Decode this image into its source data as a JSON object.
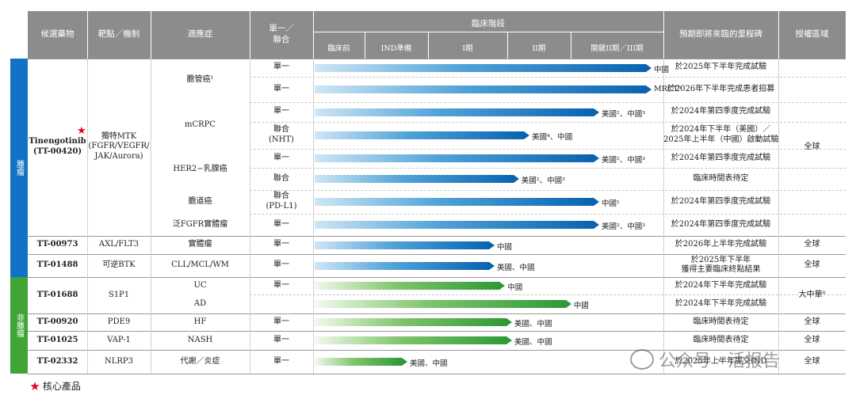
{
  "header": {
    "candidate": "候選藥物",
    "target": "靶點／機制",
    "indication": "適應症",
    "mono_combo": "單一／\n聯合",
    "clinical_stage": "臨床階段",
    "stages": [
      "臨床前",
      "IND準備",
      "I期",
      "II期",
      "關鍵II期／III期"
    ],
    "milestone": "預期即將來臨的里程碑",
    "rights": "授權區域"
  },
  "sections": {
    "oncology": "腫瘤",
    "non_oncology": "非腫瘤"
  },
  "colors": {
    "oncology": "#1173c5",
    "non_oncology": "#3fa535",
    "header": "#8c8c8c",
    "star": "#e3001b"
  },
  "rows": [
    {
      "candidate": "Tinengotinib\n(TT-00420)",
      "target": "獨特MTK\n(FGFR/VEGFR/\nJAK/Aurora)",
      "indication": "膽管癌¹",
      "mode": "單一",
      "progress": 0.95,
      "bar_label": "中國",
      "milestone": "於2025年下半年完成試驗",
      "rights": "全球",
      "color": "blue"
    },
    {
      "indication": "",
      "mode": "單一",
      "progress": 0.95,
      "bar_label": "MRCT⁵",
      "milestone": "於2026年下半年完成患者招募",
      "color": "blue"
    },
    {
      "indication": "mCRPC",
      "mode": "單一",
      "progress": 0.8,
      "bar_label": "美國²、中國³",
      "milestone": "於2024年第四季度完成試驗",
      "color": "blue"
    },
    {
      "indication": "",
      "mode": "聯合\n(NHT)",
      "progress": 0.6,
      "bar_label": "美國⁴、中國",
      "milestone": "於2024年下半年（美國）／\n2025年上半年（中國）啟動試驗",
      "color": "blue"
    },
    {
      "indication": "HER2−乳腺癌",
      "mode": "單一",
      "progress": 0.8,
      "bar_label": "美國²、中國³",
      "milestone": "於2024年第四季度完成試驗",
      "color": "blue"
    },
    {
      "indication": "",
      "mode": "聯合",
      "progress": 0.57,
      "bar_label": "美國²、中國³",
      "milestone": "臨床時間表待定",
      "color": "blue"
    },
    {
      "indication": "膽道癌",
      "mode": "聯合\n(PD-L1)",
      "progress": 0.8,
      "bar_label": "中國¹",
      "milestone": "於2024年第四季度完成試驗",
      "color": "blue"
    },
    {
      "indication": "泛FGFR實體瘤",
      "mode": "單一",
      "progress": 0.8,
      "bar_label": "美國²、中國³",
      "milestone": "於2024年第四季度完成試驗",
      "color": "blue"
    },
    {
      "candidate": "TT-00973",
      "target": "AXL/FLT3",
      "indication": "實體瘤",
      "mode": "單一",
      "progress": 0.5,
      "bar_label": "中國",
      "milestone": "於2026年上半年完成試驗",
      "rights": "全球",
      "color": "blue"
    },
    {
      "candidate": "TT-01488",
      "target": "可逆BTK",
      "indication": "CLL/MCL/WM",
      "mode": "單一",
      "progress": 0.5,
      "bar_label": "美國、中國",
      "milestone": "於2025年下半年\n獲得主要臨床終點結果",
      "rights": "全球",
      "color": "blue"
    },
    {
      "candidate": "TT-01688",
      "target": "S1P1",
      "indication": "UC",
      "mode": "單一",
      "progress": 0.53,
      "bar_label": "中國",
      "milestone": "於2024年下半年完成試驗",
      "rights": "大中華⁶",
      "color": "green"
    },
    {
      "indication": "AD",
      "mode": "",
      "progress": 0.72,
      "bar_label": "中國",
      "milestone": "於2024年下半年完成試驗",
      "color": "green"
    },
    {
      "candidate": "TT-00920",
      "target": "PDE9",
      "indication": "HF",
      "mode": "單一",
      "progress": 0.55,
      "bar_label": "美國、中國",
      "milestone": "臨床時間表待定",
      "rights": "全球",
      "color": "green"
    },
    {
      "candidate": "TT-01025",
      "target": "VAP-1",
      "indication": "NASH",
      "mode": "單一",
      "progress": 0.55,
      "bar_label": "美國、中國",
      "milestone": "臨床時間表待定",
      "rights": "全球",
      "color": "green"
    },
    {
      "candidate": "TT-02332",
      "target": "NLRP3",
      "indication": "代謝／炎症",
      "mode": "單一",
      "progress": 0.25,
      "bar_label": "美國、中國",
      "milestone": "於2025年上半年提交IND",
      "rights": "全球",
      "color": "green"
    }
  ],
  "footnote": "核心產品",
  "watermark": "公众号 · 活报告"
}
